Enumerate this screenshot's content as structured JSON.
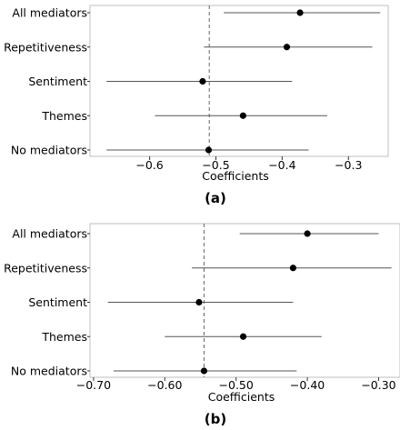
{
  "chart_data": [
    {
      "type": "forest",
      "panel_label": "(a)",
      "xlabel": "Coefficients",
      "xlim": [
        -0.69,
        -0.24
      ],
      "xticks": [
        -0.6,
        -0.5,
        -0.4,
        -0.3
      ],
      "xtick_labels": [
        "−0.6",
        "−0.5",
        "−0.4",
        "−0.3"
      ],
      "reference_line": -0.51,
      "categories": [
        "All mediators",
        "Repetitiveness",
        "Sentiment",
        "Themes",
        "No mediators"
      ],
      "estimates": [
        -0.373,
        -0.393,
        -0.52,
        -0.459,
        -0.511
      ],
      "ci_low": [
        -0.488,
        -0.518,
        -0.665,
        -0.592,
        -0.665
      ],
      "ci_high": [
        -0.252,
        -0.264,
        -0.385,
        -0.332,
        -0.36
      ]
    },
    {
      "type": "forest",
      "panel_label": "(b)",
      "xlabel": "Coefficients",
      "xlim": [
        -0.705,
        -0.27
      ],
      "xticks": [
        -0.7,
        -0.6,
        -0.5,
        -0.4,
        -0.3
      ],
      "xtick_labels": [
        "−0.70",
        "−0.60",
        "−0.50",
        "−0.40",
        "−0.30"
      ],
      "reference_line": -0.545,
      "categories": [
        "All mediators",
        "Repetitiveness",
        "Sentiment",
        "Themes",
        "No mediators"
      ],
      "estimates": [
        -0.4,
        -0.42,
        -0.552,
        -0.49,
        -0.545
      ],
      "ci_low": [
        -0.495,
        -0.562,
        -0.68,
        -0.6,
        -0.672
      ],
      "ci_high": [
        -0.3,
        -0.282,
        -0.42,
        -0.38,
        -0.415
      ]
    }
  ]
}
